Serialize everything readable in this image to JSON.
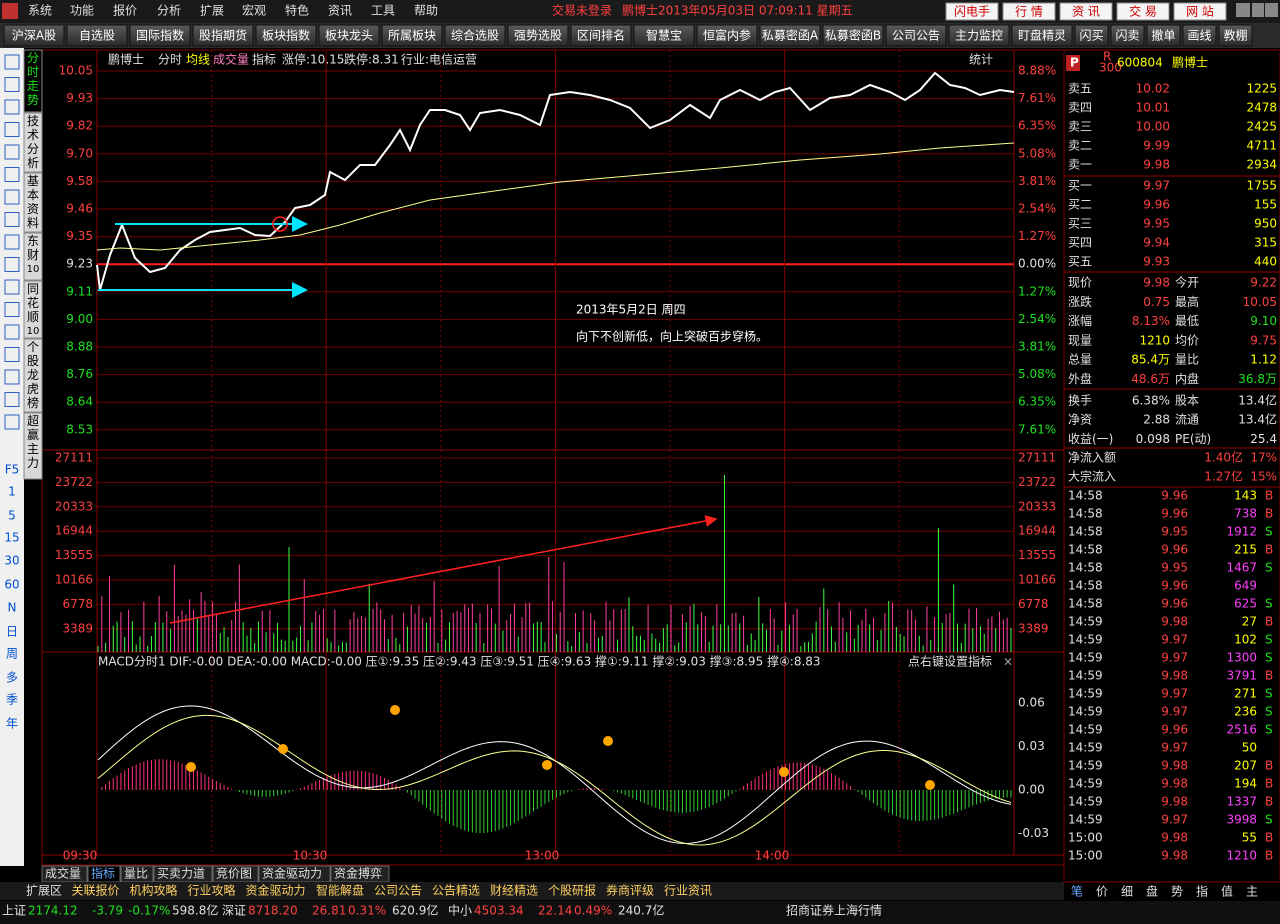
{
  "menu": [
    "系统",
    "功能",
    "报价",
    "分析",
    "扩展",
    "宏观",
    "特色",
    "资讯",
    "工具",
    "帮助"
  ],
  "status": {
    "login": "交易未登录",
    "stock_time": "鹏博士2013年05月03日 07:09:11 星期五"
  },
  "top_buttons": [
    "闪电手",
    "行 情",
    "资 讯",
    "交 易",
    "网 站"
  ],
  "toolbar": [
    "沪深A股",
    "自选股",
    "国际指数",
    "股指期货",
    "板块指数",
    "板块龙头",
    "所属板块",
    "综合选股",
    "强势选股",
    "区间排名",
    "智慧宝",
    "恒富内参",
    "私募密函A",
    "私募密函B",
    "公司公告",
    "主力监控",
    "盯盘精灵",
    "闪买",
    "闪卖",
    "撤单",
    "画线",
    "教棚"
  ],
  "side_tabs": [
    "分时走势",
    "技术分析",
    "基本资料",
    "东财10",
    "同花顺10",
    "个股龙虎榜",
    "超赢主力"
  ],
  "periods": [
    "F5",
    "1",
    "5",
    "15",
    "30",
    "60",
    "N",
    "日",
    "周",
    "多",
    "季",
    "年"
  ],
  "chart": {
    "header": [
      "鹏博士",
      "分时",
      "均线",
      "成交量",
      "指标",
      "涨停:10.15",
      "跌停:8.31",
      "行业:电信运营"
    ],
    "stats_btn": "统计",
    "price_axis": [
      "10.05",
      "9.93",
      "9.82",
      "9.70",
      "9.58",
      "9.46",
      "9.35",
      "9.23",
      "9.11",
      "9.00",
      "8.88",
      "8.76",
      "8.64",
      "8.53"
    ],
    "pct_axis": [
      "8.88%",
      "7.61%",
      "6.35%",
      "5.08%",
      "3.81%",
      "2.54%",
      "1.27%",
      "0.00%",
      "1.27%",
      "2.54%",
      "3.81%",
      "5.08%",
      "6.35%",
      "7.61%"
    ],
    "volume_axis": [
      "27111",
      "23722",
      "20333",
      "16944",
      "13555",
      "10166",
      "6778",
      "3389"
    ],
    "macd_header": "MACD分时1  DIF:-0.00  DEA:-0.00  MACD:-0.00  压①:9.35  压②:9.43  压③:9.51  压④:9.63  撑①:9.11  撑②:9.03  撑③:8.95  撑④:8.83",
    "macd_hint": "点右键设置指标",
    "macd_axis": [
      "0.06",
      "0.03",
      "0.00",
      "-0.03"
    ],
    "time_axis": [
      "09:30",
      "10:30",
      "13:00",
      "14:00"
    ],
    "annotation": [
      "2013年5月2日 周四",
      "向下不创新低，向上突破百步穿杨。"
    ]
  },
  "bottom_tabs": [
    "成交量",
    "指标",
    "量比",
    "买卖力道",
    "竞价图",
    "资金驱动力",
    "资金搏弈"
  ],
  "info_tabs": [
    "扩展区",
    "关联报价",
    "机构攻略",
    "行业攻略",
    "资金驱动力",
    "智能解盘",
    "公司公告",
    "公告精选",
    "财经精选",
    "个股研报",
    "券商评级",
    "行业资讯"
  ],
  "indices": [
    {
      "name": "上证",
      "value": "2174.12",
      "change": "-3.79",
      "pct": "-0.17%",
      "amount": "598.8亿"
    },
    {
      "name": "深证",
      "value": "8718.20",
      "change": "26.81",
      "pct": "0.31%",
      "amount": "620.9亿"
    },
    {
      "name": "中小",
      "value": "4503.34",
      "change": "22.14",
      "pct": "0.49%",
      "amount": "240.7亿"
    }
  ],
  "broker": "招商证券上海行情",
  "quote": {
    "flag": "P",
    "badge": "R",
    "badge_num": "300",
    "code": "600804",
    "name": "鹏博士",
    "book": [
      [
        "卖五",
        "10.02",
        "1225"
      ],
      [
        "卖四",
        "10.01",
        "2478"
      ],
      [
        "卖三",
        "10.00",
        "2425"
      ],
      [
        "卖二",
        "9.99",
        "4711"
      ],
      [
        "卖一",
        "9.98",
        "2934"
      ],
      [
        "买一",
        "9.97",
        "1755"
      ],
      [
        "买二",
        "9.96",
        "155"
      ],
      [
        "买三",
        "9.95",
        "950"
      ],
      [
        "买四",
        "9.94",
        "315"
      ],
      [
        "买五",
        "9.93",
        "440"
      ]
    ],
    "stats": [
      [
        "现价",
        "9.98",
        "今开",
        "9.22"
      ],
      [
        "涨跌",
        "0.75",
        "最高",
        "10.05"
      ],
      [
        "涨幅",
        "8.13%",
        "最低",
        "9.10"
      ],
      [
        "现量",
        "1210",
        "均价",
        "9.75"
      ],
      [
        "总量",
        "85.4万",
        "量比",
        "1.12"
      ],
      [
        "外盘",
        "48.6万",
        "内盘",
        "36.8万"
      ],
      [
        "换手",
        "6.38%",
        "股本",
        "13.4亿"
      ],
      [
        "净资",
        "2.88",
        "流通",
        "13.4亿"
      ],
      [
        "收益(一)",
        "0.098",
        "PE(动)",
        "25.4"
      ]
    ],
    "flows": [
      [
        "净流入额",
        "1.40亿",
        "17%"
      ],
      [
        "大宗流入",
        "1.27亿",
        "15%"
      ]
    ]
  },
  "trades": [
    [
      "14:58",
      "9.96",
      "143",
      "B"
    ],
    [
      "14:58",
      "9.96",
      "738",
      "B"
    ],
    [
      "14:58",
      "9.95",
      "1912",
      "S"
    ],
    [
      "14:58",
      "9.96",
      "215",
      "B"
    ],
    [
      "14:58",
      "9.95",
      "1467",
      "S"
    ],
    [
      "14:58",
      "9.96",
      "649"
    ],
    [
      "14:58",
      "9.96",
      "625",
      "S"
    ],
    [
      "14:59",
      "9.98",
      "27",
      "B"
    ],
    [
      "14:59",
      "9.97",
      "102",
      "S"
    ],
    [
      "14:59",
      "9.97",
      "1300",
      "S"
    ],
    [
      "14:59",
      "9.98",
      "3791",
      "B"
    ],
    [
      "14:59",
      "9.97",
      "271",
      "S"
    ],
    [
      "14:59",
      "9.97",
      "236",
      "S"
    ],
    [
      "14:59",
      "9.96",
      "2516",
      "S"
    ],
    [
      "14:59",
      "9.97",
      "50"
    ],
    [
      "14:59",
      "9.98",
      "207",
      "B"
    ],
    [
      "14:59",
      "9.98",
      "194",
      "B"
    ],
    [
      "14:59",
      "9.98",
      "1337",
      "B"
    ],
    [
      "14:59",
      "9.97",
      "3998",
      "S"
    ],
    [
      "15:00",
      "9.98",
      "55",
      "B"
    ],
    [
      "15:00",
      "9.98",
      "1210",
      "B"
    ]
  ],
  "right_tabs": [
    "笔",
    "价",
    "细",
    "盘",
    "势",
    "指",
    "值",
    "主"
  ]
}
